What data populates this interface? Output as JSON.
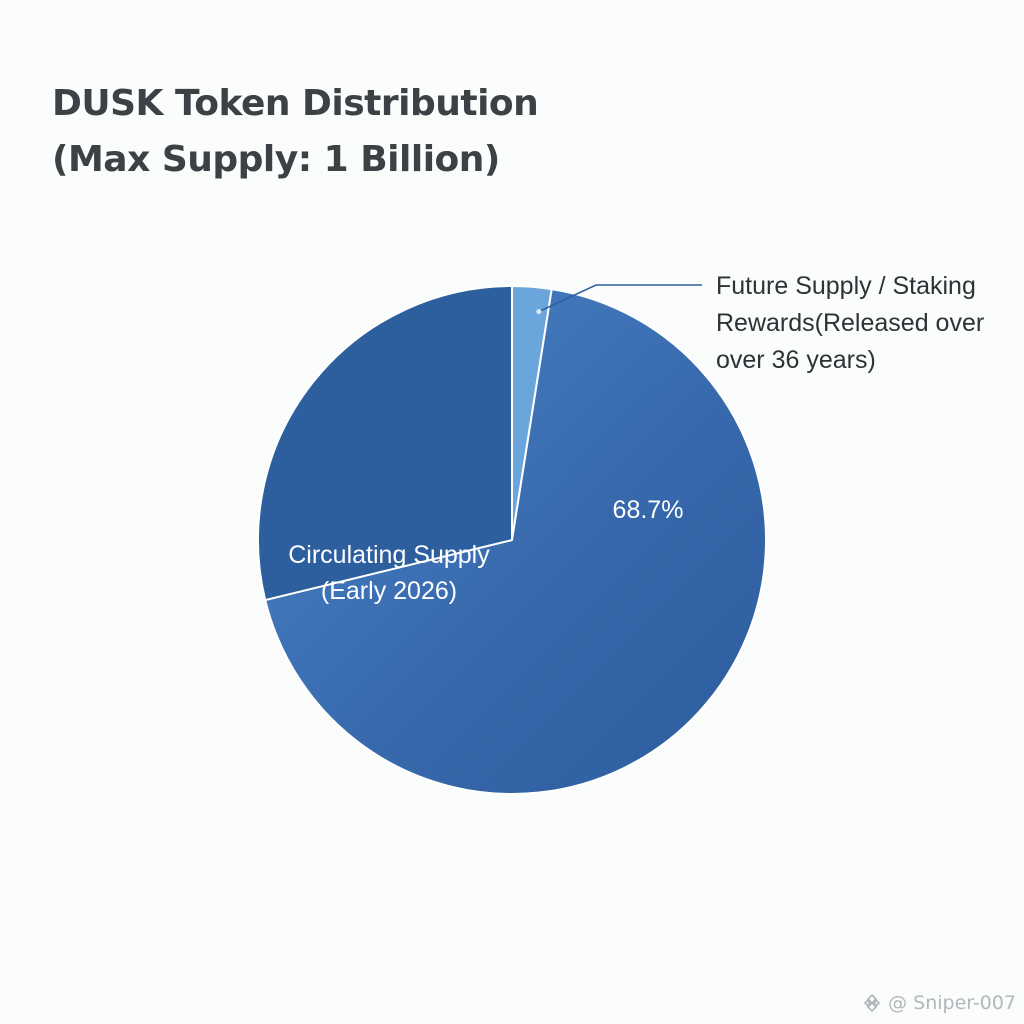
{
  "title": {
    "line1": "DUSK Token Distribution",
    "line2": "(Max Supply: 1 Billion)"
  },
  "chart_data": {
    "type": "pie",
    "title": "DUSK Token Distribution (Max Supply: 1 Billion)",
    "start_angle_deg": 0,
    "direction": "clockwise",
    "slices": [
      {
        "label": "Future Supply / Staking Rewards (Released over over 36 years)",
        "value": 2.5,
        "color": "#6aa6dc",
        "label_lines": [
          "Future Supply / Staking",
          "Rewards(Released over",
          "over 36 years)"
        ],
        "label_placement": "callout-top-right"
      },
      {
        "label": "",
        "value": 68.7,
        "value_label": "68.7%",
        "color": "#3b74b8",
        "label_placement": "inside"
      },
      {
        "label": "Circulating Supply (Early 2026)",
        "value": 28.8,
        "color": "#2d5f9e",
        "label_lines": [
          "Circulating Supply",
          "(Early 2026)"
        ],
        "label_placement": "inside"
      }
    ]
  },
  "watermark": {
    "text": "@ Sniper-007",
    "icon": "binance-logo-icon"
  }
}
